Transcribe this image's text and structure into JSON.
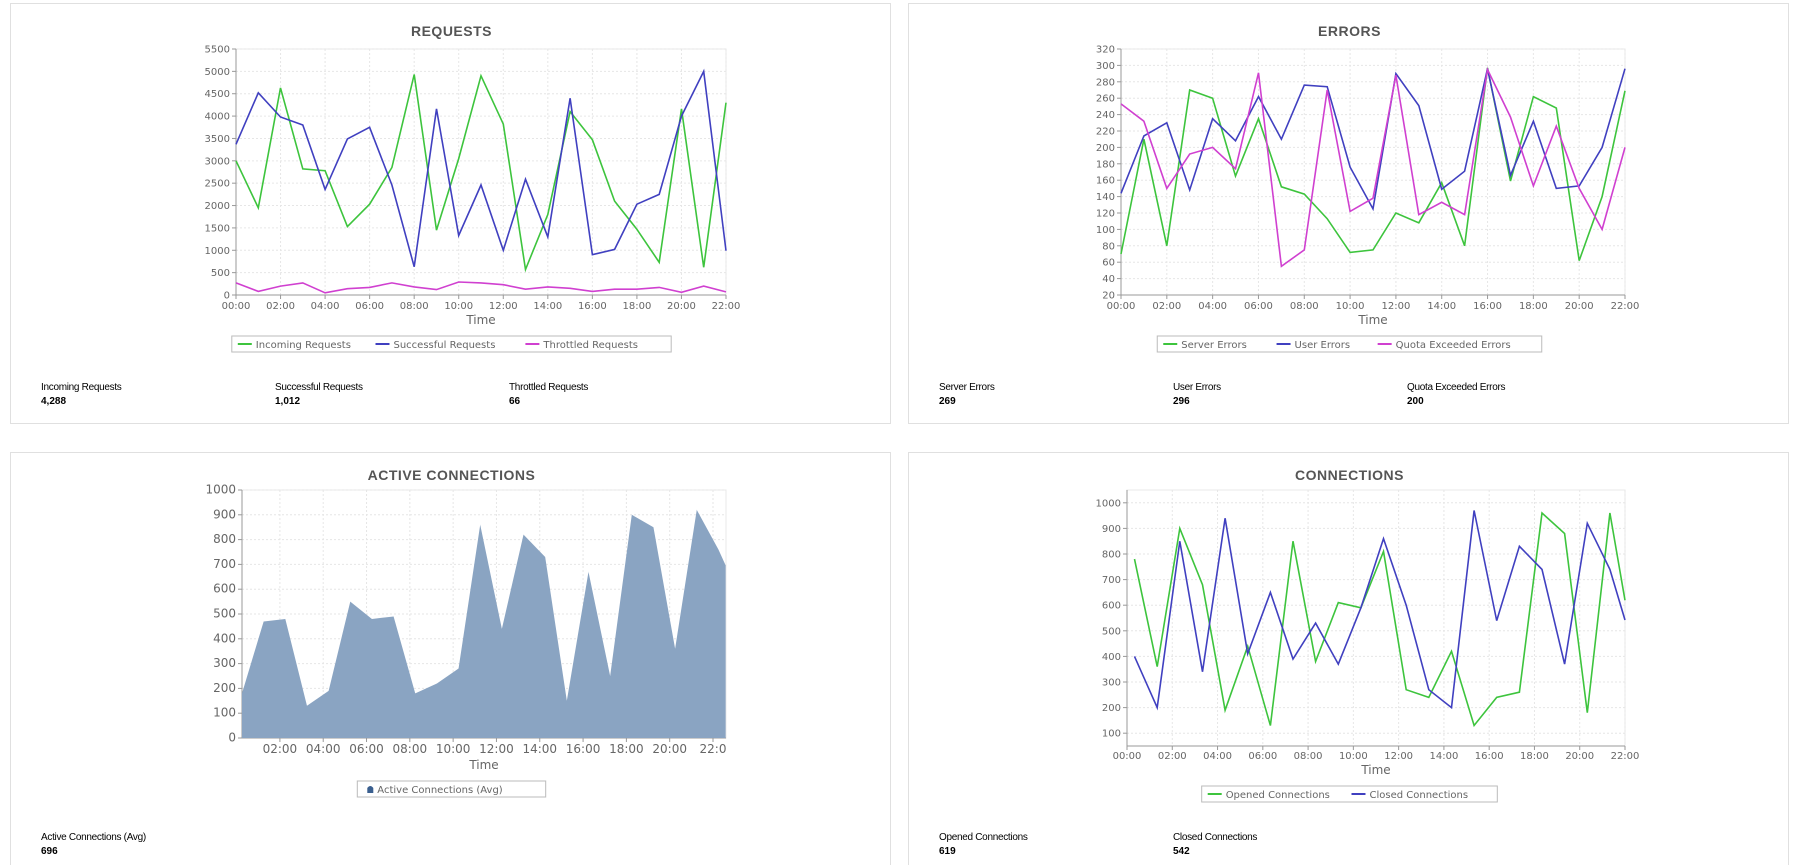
{
  "colors": {
    "green": "#3dc43d",
    "blue": "#4040c0",
    "magenta": "#d040d0",
    "area": "#8aa4c2",
    "grid": "#e6e6e6"
  },
  "panels": [
    {
      "stats": [
        {
          "label": "Incoming Requests",
          "value": "4,288"
        },
        {
          "label": "Successful Requests",
          "value": "1,012"
        },
        {
          "label": "Throttled Requests",
          "value": "66"
        }
      ]
    },
    {
      "stats": [
        {
          "label": "Server Errors",
          "value": "269"
        },
        {
          "label": "User Errors",
          "value": "296"
        },
        {
          "label": "Quota Exceeded Errors",
          "value": "200"
        }
      ]
    },
    {
      "stats": [
        {
          "label": "Active Connections (Avg)",
          "value": "696"
        }
      ]
    },
    {
      "stats": [
        {
          "label": "Opened Connections",
          "value": "619"
        },
        {
          "label": "Closed Connections",
          "value": "542"
        }
      ]
    }
  ],
  "chart_data": [
    {
      "type": "line",
      "title": "REQUESTS",
      "xlabel": "Time",
      "ylabel": "",
      "ylim": [
        0,
        5500
      ],
      "yticks": [
        0,
        500,
        1000,
        1500,
        2000,
        2500,
        3000,
        3500,
        4000,
        4500,
        5000,
        5500
      ],
      "xticks": [
        "00:00",
        "02:00",
        "04:00",
        "06:00",
        "08:00",
        "10:00",
        "12:00",
        "14:00",
        "16:00",
        "18:00",
        "20:00",
        "22:00"
      ],
      "x": [
        "00:00",
        "01:00",
        "02:00",
        "03:00",
        "04:00",
        "05:00",
        "06:00",
        "07:00",
        "08:00",
        "09:00",
        "10:00",
        "11:00",
        "12:00",
        "13:00",
        "14:00",
        "15:00",
        "16:00",
        "17:00",
        "18:00",
        "19:00",
        "20:00",
        "21:00",
        "22:00"
      ],
      "grid": true,
      "legend": "bottom",
      "series": [
        {
          "name": "Incoming Requests",
          "color": "#3dc43d",
          "values": [
            3000,
            1950,
            4630,
            2820,
            2780,
            1530,
            2030,
            2850,
            4930,
            1450,
            3050,
            4900,
            3820,
            570,
            1800,
            4100,
            3470,
            2100,
            1470,
            730,
            4160,
            620,
            4300
          ]
        },
        {
          "name": "Successful Requests",
          "color": "#4040c0",
          "values": [
            3370,
            4520,
            3980,
            3800,
            2360,
            3490,
            3750,
            2460,
            630,
            4160,
            1330,
            2460,
            1000,
            2590,
            1300,
            4400,
            900,
            1020,
            2030,
            2250,
            4000,
            5000,
            990
          ]
        },
        {
          "name": "Throttled Requests",
          "color": "#d040d0",
          "values": [
            270,
            80,
            200,
            270,
            50,
            140,
            170,
            270,
            180,
            120,
            290,
            270,
            230,
            130,
            180,
            150,
            80,
            130,
            130,
            170,
            60,
            200,
            70
          ]
        }
      ]
    },
    {
      "type": "line",
      "title": "ERRORS",
      "xlabel": "Time",
      "ylabel": "",
      "ylim": [
        20,
        320
      ],
      "yticks": [
        20,
        40,
        60,
        80,
        100,
        120,
        140,
        160,
        180,
        200,
        220,
        240,
        260,
        280,
        300,
        320
      ],
      "xticks": [
        "00:00",
        "02:00",
        "04:00",
        "06:00",
        "08:00",
        "10:00",
        "12:00",
        "14:00",
        "16:00",
        "18:00",
        "20:00",
        "22:00"
      ],
      "x": [
        "00:00",
        "01:00",
        "02:00",
        "03:00",
        "04:00",
        "05:00",
        "06:00",
        "07:00",
        "08:00",
        "09:00",
        "10:00",
        "11:00",
        "12:00",
        "13:00",
        "14:00",
        "15:00",
        "16:00",
        "17:00",
        "18:00",
        "19:00",
        "20:00",
        "21:00",
        "22:00"
      ],
      "grid": true,
      "legend": "bottom",
      "series": [
        {
          "name": "Server Errors",
          "color": "#3dc43d",
          "values": [
            70,
            210,
            80,
            270,
            260,
            165,
            235,
            152,
            143,
            113,
            72,
            75,
            120,
            108,
            157,
            80,
            297,
            159,
            262,
            248,
            62,
            140,
            269
          ]
        },
        {
          "name": "User Errors",
          "color": "#4040c0",
          "values": [
            144,
            214,
            230,
            148,
            235,
            208,
            262,
            210,
            276,
            274,
            176,
            125,
            290,
            251,
            149,
            171,
            296,
            166,
            232,
            150,
            153,
            200,
            296
          ]
        },
        {
          "name": "Quota Exceeded Errors",
          "color": "#d040d0",
          "values": [
            253,
            232,
            150,
            192,
            200,
            174,
            291,
            55,
            75,
            270,
            122,
            138,
            288,
            118,
            133,
            118,
            295,
            237,
            153,
            226,
            150,
            100,
            200
          ]
        }
      ]
    },
    {
      "type": "area",
      "title": "ACTIVE CONNECTIONS",
      "xlabel": "Time",
      "ylabel": "",
      "ylim": [
        0,
        1000
      ],
      "yticks": [
        0,
        100,
        200,
        300,
        400,
        500,
        600,
        700,
        800,
        900,
        1000
      ],
      "xticks": [
        "02:00",
        "04:00",
        "06:00",
        "08:00",
        "10:00",
        "12:00",
        "14:00",
        "16:00",
        "18:00",
        "20:00",
        "22:0"
      ],
      "x": [
        "00:15",
        "01:15",
        "02:15",
        "03:15",
        "04:15",
        "05:15",
        "06:15",
        "07:15",
        "08:15",
        "09:15",
        "10:15",
        "11:15",
        "12:15",
        "13:15",
        "14:15",
        "15:15",
        "16:15",
        "17:15",
        "18:15",
        "19:15",
        "20:15",
        "21:15",
        "22:15",
        "22:35"
      ],
      "grid": true,
      "legend": "bottom",
      "series": [
        {
          "name": "Active Connections (Avg)",
          "color": "#8aa4c2",
          "values": [
            180,
            470,
            480,
            130,
            190,
            550,
            480,
            490,
            180,
            220,
            280,
            860,
            440,
            820,
            730,
            150,
            670,
            250,
            900,
            850,
            360,
            920,
            760,
            696
          ]
        }
      ]
    },
    {
      "type": "line",
      "title": "CONNECTIONS",
      "xlabel": "Time",
      "ylabel": "",
      "ylim": [
        50,
        1050
      ],
      "yticks": [
        100,
        200,
        300,
        400,
        500,
        600,
        700,
        800,
        900,
        1000
      ],
      "xticks": [
        "00:00",
        "02:00",
        "04:00",
        "06:00",
        "08:00",
        "10:00",
        "12:00",
        "14:00",
        "16:00",
        "18:00",
        "20:00",
        "22:00"
      ],
      "x": [
        "00:20",
        "01:20",
        "02:20",
        "03:20",
        "04:20",
        "05:20",
        "06:20",
        "07:20",
        "08:20",
        "09:20",
        "10:20",
        "11:20",
        "12:20",
        "13:20",
        "14:20",
        "15:20",
        "16:20",
        "17:20",
        "18:20",
        "19:20",
        "20:20",
        "21:20",
        "22:00"
      ],
      "grid": true,
      "legend": "bottom",
      "series": [
        {
          "name": "Opened Connections",
          "color": "#3dc43d",
          "values": [
            780,
            360,
            900,
            680,
            190,
            440,
            130,
            850,
            380,
            610,
            590,
            810,
            270,
            240,
            420,
            130,
            240,
            260,
            960,
            880,
            180,
            960,
            619
          ]
        },
        {
          "name": "Closed Connections",
          "color": "#4040c0",
          "values": [
            400,
            200,
            850,
            340,
            940,
            410,
            650,
            390,
            530,
            370,
            590,
            860,
            600,
            270,
            200,
            970,
            540,
            830,
            740,
            370,
            920,
            740,
            542
          ]
        }
      ]
    }
  ]
}
